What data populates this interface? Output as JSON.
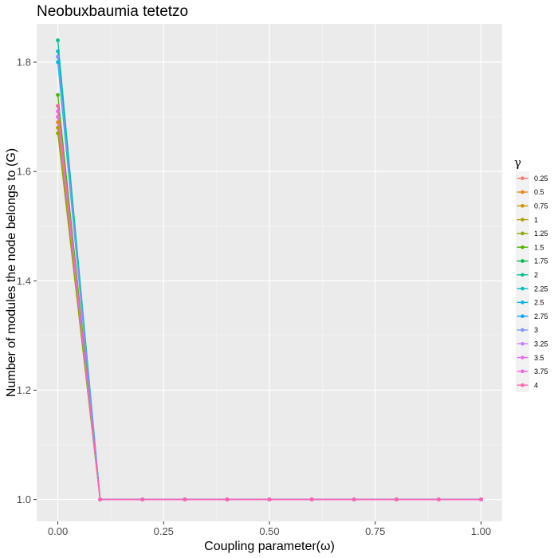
{
  "chart_data": {
    "type": "line",
    "title": "Neobuxbaumia tetetzo",
    "xlabel": "Coupling parameter(ω)",
    "ylabel": "Number of modules the node belongs to (G)",
    "xlim": [
      -0.05,
      1.05
    ],
    "ylim": [
      0.96,
      1.87
    ],
    "xticks": [
      0.0,
      0.25,
      0.5,
      0.75,
      1.0
    ],
    "xtick_labels": [
      "0.00",
      "0.25",
      "0.50",
      "0.75",
      "1.00"
    ],
    "yticks": [
      1.0,
      1.2,
      1.4,
      1.6,
      1.8
    ],
    "ytick_labels": [
      "1.0",
      "1.2",
      "1.4",
      "1.6",
      "1.8"
    ],
    "grid": true,
    "legend": {
      "title": "γ",
      "position": "right"
    },
    "x": [
      0.0,
      0.1,
      0.2,
      0.3,
      0.4,
      0.5,
      0.6,
      0.7,
      0.8,
      0.9,
      1.0
    ],
    "series": [
      {
        "name": "0.25",
        "color": "#F8766D",
        "values": [
          1.7,
          1,
          1,
          1,
          1,
          1,
          1,
          1,
          1,
          1,
          1
        ]
      },
      {
        "name": "0.5",
        "color": "#E7861B",
        "values": [
          1.69,
          1,
          1,
          1,
          1,
          1,
          1,
          1,
          1,
          1,
          1
        ]
      },
      {
        "name": "0.75",
        "color": "#D09400",
        "values": [
          1.68,
          1,
          1,
          1,
          1,
          1,
          1,
          1,
          1,
          1,
          1
        ]
      },
      {
        "name": "1",
        "color": "#B2A000",
        "values": [
          1.68,
          1,
          1,
          1,
          1,
          1,
          1,
          1,
          1,
          1,
          1
        ]
      },
      {
        "name": "1.25",
        "color": "#8BAB00",
        "values": [
          1.67,
          1,
          1,
          1,
          1,
          1,
          1,
          1,
          1,
          1,
          1
        ]
      },
      {
        "name": "1.5",
        "color": "#53B400",
        "values": [
          1.74,
          1,
          1,
          1,
          1,
          1,
          1,
          1,
          1,
          1,
          1
        ]
      },
      {
        "name": "1.75",
        "color": "#00BB4E",
        "values": [
          1.72,
          1,
          1,
          1,
          1,
          1,
          1,
          1,
          1,
          1,
          1
        ]
      },
      {
        "name": "2",
        "color": "#00C094",
        "values": [
          1.84,
          1,
          1,
          1,
          1,
          1,
          1,
          1,
          1,
          1,
          1
        ]
      },
      {
        "name": "2.25",
        "color": "#00BFC4",
        "values": [
          1.82,
          1,
          1,
          1,
          1,
          1,
          1,
          1,
          1,
          1,
          1
        ]
      },
      {
        "name": "2.5",
        "color": "#00B6EB",
        "values": [
          1.8,
          1,
          1,
          1,
          1,
          1,
          1,
          1,
          1,
          1,
          1
        ]
      },
      {
        "name": "2.75",
        "color": "#06A4FF",
        "values": [
          1.81,
          1,
          1,
          1,
          1,
          1,
          1,
          1,
          1,
          1,
          1
        ]
      },
      {
        "name": "3",
        "color": "#7F96FF",
        "values": [
          1.81,
          1,
          1,
          1,
          1,
          1,
          1,
          1,
          1,
          1,
          1
        ]
      },
      {
        "name": "3.25",
        "color": "#C77CFF",
        "values": [
          1.71,
          1,
          1,
          1,
          1,
          1,
          1,
          1,
          1,
          1,
          1
        ]
      },
      {
        "name": "3.5",
        "color": "#E76BF3",
        "values": [
          1.7,
          1,
          1,
          1,
          1,
          1,
          1,
          1,
          1,
          1,
          1
        ]
      },
      {
        "name": "3.75",
        "color": "#F564E3",
        "values": [
          1.71,
          1,
          1,
          1,
          1,
          1,
          1,
          1,
          1,
          1,
          1
        ]
      },
      {
        "name": "4",
        "color": "#FF64B0",
        "values": [
          1.72,
          1,
          1,
          1,
          1,
          1,
          1,
          1,
          1,
          1,
          1
        ]
      }
    ]
  }
}
